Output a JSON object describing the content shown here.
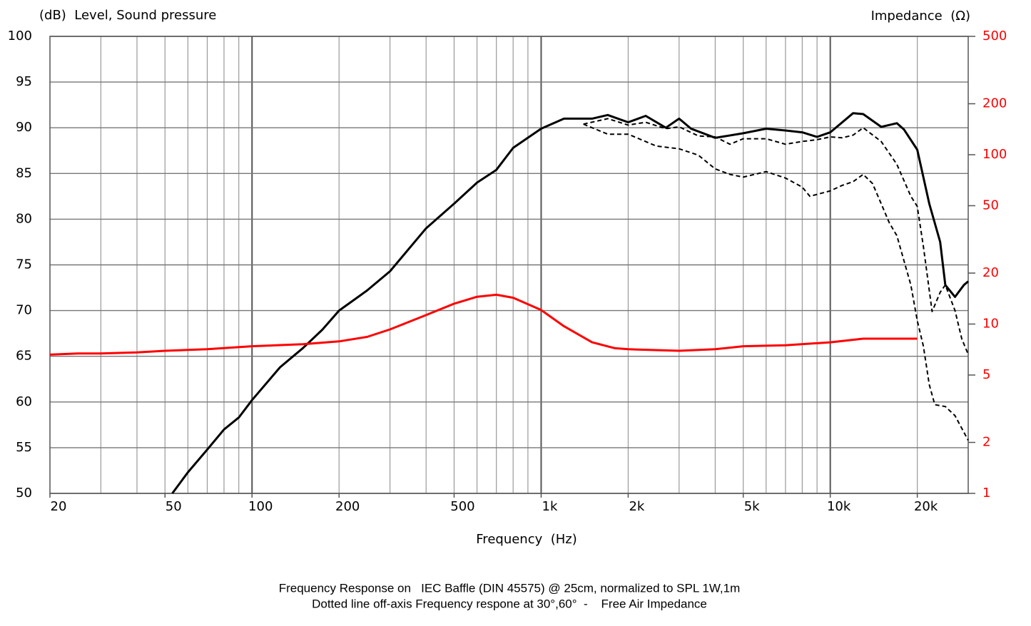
{
  "chart_data": {
    "type": "line",
    "ylabel": "(dB)  Level, Sound pressure",
    "y2label": "Impedance  (Ω)",
    "xlabel": "Frequency  (Hz)",
    "notes": [
      "Frequency Response on   IEC Baffle (DIN 45575) @ 25cm, normalized to SPL 1W,1m",
      "Dotted line off-axis Frequency respone at 30°,60°  -    Free Air Impedance"
    ],
    "xscale": "log",
    "y2scale": "log",
    "grid": true,
    "xlim": [
      20,
      30000
    ],
    "xticks": [
      20,
      50,
      100,
      200,
      500,
      {
        "value": 1000,
        "label": "1k"
      },
      {
        "value": 2000,
        "label": "2k"
      },
      {
        "value": 5000,
        "label": "5k"
      },
      {
        "value": 10000,
        "label": "10k"
      },
      {
        "value": 20000,
        "label": "20k"
      }
    ],
    "xgrid": [
      30,
      40,
      50,
      60,
      70,
      80,
      90,
      100,
      200,
      300,
      400,
      500,
      600,
      700,
      800,
      900,
      1000,
      2000,
      3000,
      4000,
      5000,
      6000,
      7000,
      8000,
      9000,
      10000,
      20000
    ],
    "ylim": [
      50,
      100
    ],
    "yticks": [
      50,
      55,
      60,
      65,
      70,
      75,
      80,
      85,
      90,
      95,
      100
    ],
    "y2lim": [
      1,
      500
    ],
    "y2ticks": [
      1,
      2,
      5,
      10,
      20,
      50,
      100,
      200,
      500
    ],
    "y2color": "#ff0000",
    "series": [
      {
        "color": "#000000",
        "style": "solid",
        "x": [
          53,
          60,
          70,
          80,
          90,
          100,
          125,
          150,
          175,
          200,
          250,
          300,
          400,
          500,
          600,
          700,
          800,
          1000,
          1200,
          1500,
          1700,
          2000,
          2300,
          2700,
          3000,
          3300,
          4000,
          5000,
          6000,
          7000,
          8000,
          9000,
          10000,
          12000,
          13000,
          15000,
          17000,
          18000,
          20000,
          22000,
          24000,
          25000,
          27000,
          29000,
          30000
        ],
        "values": [
          50,
          52.3,
          54.8,
          57,
          58.3,
          60.2,
          63.8,
          65.9,
          67.9,
          70,
          72.2,
          74.3,
          79,
          81.7,
          84,
          85.4,
          87.8,
          89.9,
          91,
          91,
          91.4,
          90.6,
          91.3,
          90,
          91,
          89.9,
          88.9,
          89.4,
          89.9,
          89.7,
          89.5,
          89,
          89.5,
          91.6,
          91.5,
          90.1,
          90.5,
          89.8,
          87.6,
          81.7,
          77.5,
          72.8,
          71.5,
          72.8,
          73.2
        ]
      },
      {
        "color": "#000000",
        "style": "dashed",
        "x": [
          1400,
          1700,
          2000,
          2300,
          2700,
          3000,
          3500,
          4000,
          4500,
          5000,
          6000,
          7000,
          8000,
          9000,
          10000,
          11000,
          12000,
          13000,
          15000,
          17000,
          19000,
          20000,
          21000,
          22500,
          24000,
          25000,
          27000,
          28500,
          30000
        ],
        "values": [
          90.4,
          91,
          90.3,
          90.6,
          89.9,
          90.1,
          89.1,
          89,
          88.2,
          88.8,
          88.8,
          88.2,
          88.5,
          88.7,
          89,
          88.9,
          89.2,
          90,
          88.5,
          86,
          82.5,
          81.4,
          77,
          69.9,
          72,
          72.8,
          70,
          66.9,
          65.2
        ]
      },
      {
        "color": "#000000",
        "style": "dashed",
        "x": [
          1400,
          1700,
          2000,
          2500,
          3000,
          3500,
          4000,
          4500,
          5000,
          6000,
          7000,
          8000,
          8500,
          10000,
          11000,
          12000,
          13000,
          14000,
          15000,
          16000,
          17000,
          19000,
          20000,
          21000,
          22000,
          23000,
          25000,
          27000,
          30000
        ],
        "values": [
          90.4,
          89.3,
          89.3,
          88,
          87.7,
          87,
          85.5,
          84.9,
          84.6,
          85.2,
          84.5,
          83.5,
          82.5,
          83.1,
          83.7,
          84.1,
          84.9,
          83.9,
          81.7,
          79.6,
          78.2,
          72.8,
          68.9,
          66.1,
          61.9,
          59.7,
          59.5,
          58.5,
          55.8
        ]
      },
      {
        "color": "#ff0000",
        "style": "solid",
        "axis": "y2",
        "x": [
          20,
          25,
          30,
          40,
          50,
          70,
          100,
          150,
          200,
          250,
          300,
          400,
          500,
          600,
          700,
          800,
          1000,
          1200,
          1500,
          1800,
          2000,
          3000,
          4000,
          5000,
          7000,
          10000,
          13000,
          20000
        ],
        "values": [
          6.6,
          6.7,
          6.7,
          6.8,
          6.95,
          7.1,
          7.4,
          7.6,
          7.9,
          8.4,
          9.3,
          11.3,
          13.2,
          14.5,
          14.9,
          14.3,
          12.1,
          9.7,
          7.8,
          7.2,
          7.1,
          6.95,
          7.1,
          7.4,
          7.5,
          7.8,
          8.2,
          8.2
        ]
      }
    ]
  }
}
